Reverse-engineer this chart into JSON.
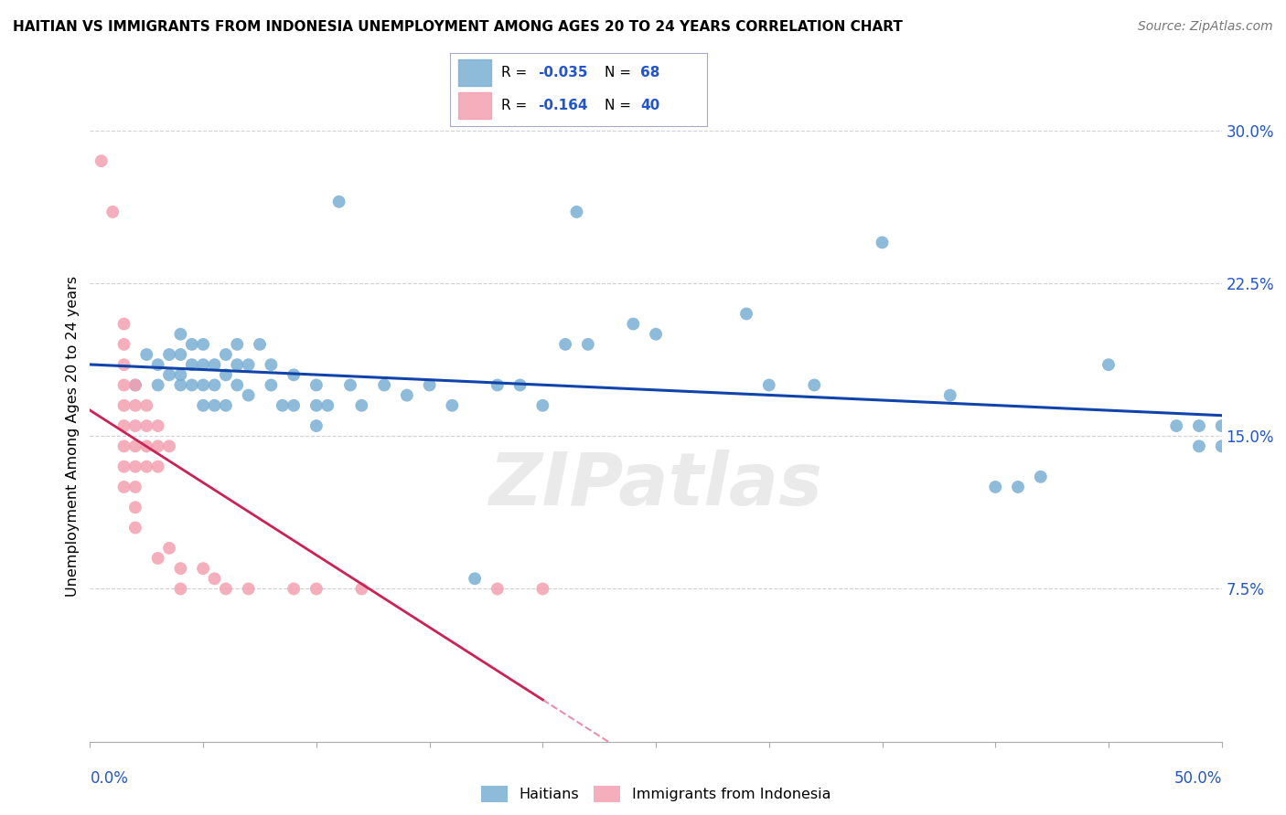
{
  "title": "HAITIAN VS IMMIGRANTS FROM INDONESIA UNEMPLOYMENT AMONG AGES 20 TO 24 YEARS CORRELATION CHART",
  "source": "Source: ZipAtlas.com",
  "ylabel": "Unemployment Among Ages 20 to 24 years",
  "xmin": 0.0,
  "xmax": 0.5,
  "ymin": 0.0,
  "ymax": 0.3,
  "yticks": [
    0.075,
    0.15,
    0.225,
    0.3
  ],
  "ytick_labels": [
    "7.5%",
    "15.0%",
    "22.5%",
    "30.0%"
  ],
  "haitians_color": "#7BAFD4",
  "indonesia_color": "#F4A0B0",
  "haitians_line_color": "#1144AA",
  "indonesia_line_color": "#CC2255",
  "haitians_scatter": [
    [
      0.02,
      0.175
    ],
    [
      0.025,
      0.19
    ],
    [
      0.03,
      0.185
    ],
    [
      0.03,
      0.175
    ],
    [
      0.035,
      0.19
    ],
    [
      0.035,
      0.18
    ],
    [
      0.04,
      0.2
    ],
    [
      0.04,
      0.19
    ],
    [
      0.04,
      0.18
    ],
    [
      0.04,
      0.175
    ],
    [
      0.045,
      0.195
    ],
    [
      0.045,
      0.185
    ],
    [
      0.045,
      0.175
    ],
    [
      0.05,
      0.195
    ],
    [
      0.05,
      0.185
    ],
    [
      0.05,
      0.175
    ],
    [
      0.05,
      0.165
    ],
    [
      0.055,
      0.185
    ],
    [
      0.055,
      0.175
    ],
    [
      0.055,
      0.165
    ],
    [
      0.06,
      0.19
    ],
    [
      0.06,
      0.18
    ],
    [
      0.06,
      0.165
    ],
    [
      0.065,
      0.195
    ],
    [
      0.065,
      0.185
    ],
    [
      0.065,
      0.175
    ],
    [
      0.07,
      0.185
    ],
    [
      0.07,
      0.17
    ],
    [
      0.075,
      0.195
    ],
    [
      0.08,
      0.185
    ],
    [
      0.08,
      0.175
    ],
    [
      0.085,
      0.165
    ],
    [
      0.09,
      0.18
    ],
    [
      0.09,
      0.165
    ],
    [
      0.1,
      0.175
    ],
    [
      0.1,
      0.165
    ],
    [
      0.1,
      0.155
    ],
    [
      0.105,
      0.165
    ],
    [
      0.11,
      0.265
    ],
    [
      0.115,
      0.175
    ],
    [
      0.12,
      0.165
    ],
    [
      0.13,
      0.175
    ],
    [
      0.14,
      0.17
    ],
    [
      0.15,
      0.175
    ],
    [
      0.16,
      0.165
    ],
    [
      0.17,
      0.08
    ],
    [
      0.18,
      0.175
    ],
    [
      0.19,
      0.175
    ],
    [
      0.2,
      0.165
    ],
    [
      0.21,
      0.195
    ],
    [
      0.215,
      0.26
    ],
    [
      0.22,
      0.195
    ],
    [
      0.24,
      0.205
    ],
    [
      0.25,
      0.2
    ],
    [
      0.29,
      0.21
    ],
    [
      0.3,
      0.175
    ],
    [
      0.32,
      0.175
    ],
    [
      0.35,
      0.245
    ],
    [
      0.38,
      0.17
    ],
    [
      0.4,
      0.125
    ],
    [
      0.41,
      0.125
    ],
    [
      0.42,
      0.13
    ],
    [
      0.45,
      0.185
    ],
    [
      0.48,
      0.155
    ],
    [
      0.49,
      0.145
    ],
    [
      0.49,
      0.155
    ],
    [
      0.5,
      0.145
    ],
    [
      0.5,
      0.155
    ]
  ],
  "indonesia_scatter": [
    [
      0.005,
      0.285
    ],
    [
      0.01,
      0.26
    ],
    [
      0.015,
      0.205
    ],
    [
      0.015,
      0.195
    ],
    [
      0.015,
      0.185
    ],
    [
      0.015,
      0.175
    ],
    [
      0.015,
      0.165
    ],
    [
      0.015,
      0.155
    ],
    [
      0.015,
      0.145
    ],
    [
      0.015,
      0.135
    ],
    [
      0.015,
      0.125
    ],
    [
      0.02,
      0.175
    ],
    [
      0.02,
      0.165
    ],
    [
      0.02,
      0.155
    ],
    [
      0.02,
      0.145
    ],
    [
      0.02,
      0.135
    ],
    [
      0.02,
      0.125
    ],
    [
      0.02,
      0.115
    ],
    [
      0.02,
      0.105
    ],
    [
      0.025,
      0.165
    ],
    [
      0.025,
      0.155
    ],
    [
      0.025,
      0.145
    ],
    [
      0.025,
      0.135
    ],
    [
      0.03,
      0.155
    ],
    [
      0.03,
      0.145
    ],
    [
      0.03,
      0.135
    ],
    [
      0.03,
      0.09
    ],
    [
      0.035,
      0.145
    ],
    [
      0.035,
      0.095
    ],
    [
      0.04,
      0.085
    ],
    [
      0.04,
      0.075
    ],
    [
      0.05,
      0.085
    ],
    [
      0.055,
      0.08
    ],
    [
      0.06,
      0.075
    ],
    [
      0.07,
      0.075
    ],
    [
      0.09,
      0.075
    ],
    [
      0.1,
      0.075
    ],
    [
      0.12,
      0.075
    ],
    [
      0.18,
      0.075
    ],
    [
      0.2,
      0.075
    ]
  ],
  "watermark": "ZIPatlas",
  "background_color": "#FFFFFF",
  "grid_color": "#CCCCCC"
}
